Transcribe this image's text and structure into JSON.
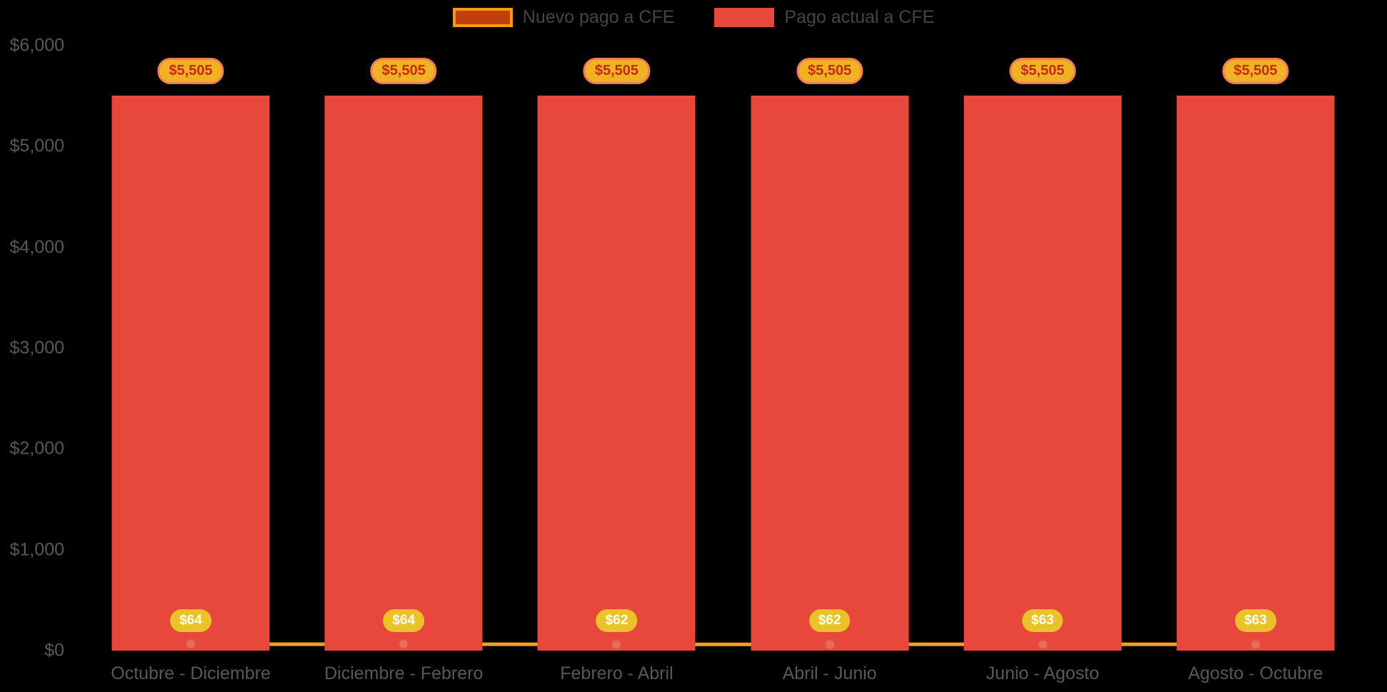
{
  "chart_data": {
    "type": "bar",
    "subtype": "bar+line combo",
    "title": "",
    "xlabel": "",
    "ylabel": "",
    "categories": [
      "Octubre - Diciembre",
      "Diciembre - Febrero",
      "Febrero - Abril",
      "Abril - Junio",
      "Junio - Agosto",
      "Agosto - Octubre"
    ],
    "series": [
      {
        "name": "Nuevo pago a CFE",
        "type": "line",
        "values": [
          64,
          64,
          62,
          62,
          63,
          63
        ],
        "labels": [
          "$64",
          "$64",
          "$62",
          "$62",
          "$63",
          "$63"
        ],
        "color": "#F6A01F"
      },
      {
        "name": "Pago actual a CFE",
        "type": "bar",
        "values": [
          5505,
          5505,
          5505,
          5505,
          5505,
          5505
        ],
        "labels": [
          "$5,505",
          "$5,505",
          "$5,505",
          "$5,505",
          "$5,505",
          "$5,505"
        ],
        "color": "#E8483B"
      }
    ],
    "y_ticks": [
      "$6,000",
      "$5,000",
      "$4,000",
      "$3,000",
      "$2,000",
      "$1,000",
      "$0"
    ],
    "ylim": [
      0,
      6000
    ],
    "grid": false,
    "legend_position": "top-center",
    "background": "#000000"
  },
  "colors": {
    "bar": "#E8483B",
    "line": "#F6A01F",
    "dot": "#ED6A5E",
    "pill_top_bg": "#F0B222",
    "pill_top_border": "#EF7D5D",
    "pill_top_text": "#C42B1C",
    "pill_bottom_bg": "#ECC229",
    "pill_bottom_text": "#FFFFFF",
    "legend_swatch_nuevo_fill": "#C33E0F",
    "legend_swatch_nuevo_border": "#F29C11",
    "legend_swatch_actual_fill": "#E8483B",
    "axis_text": "#57585B",
    "legend_text": "#454548"
  }
}
